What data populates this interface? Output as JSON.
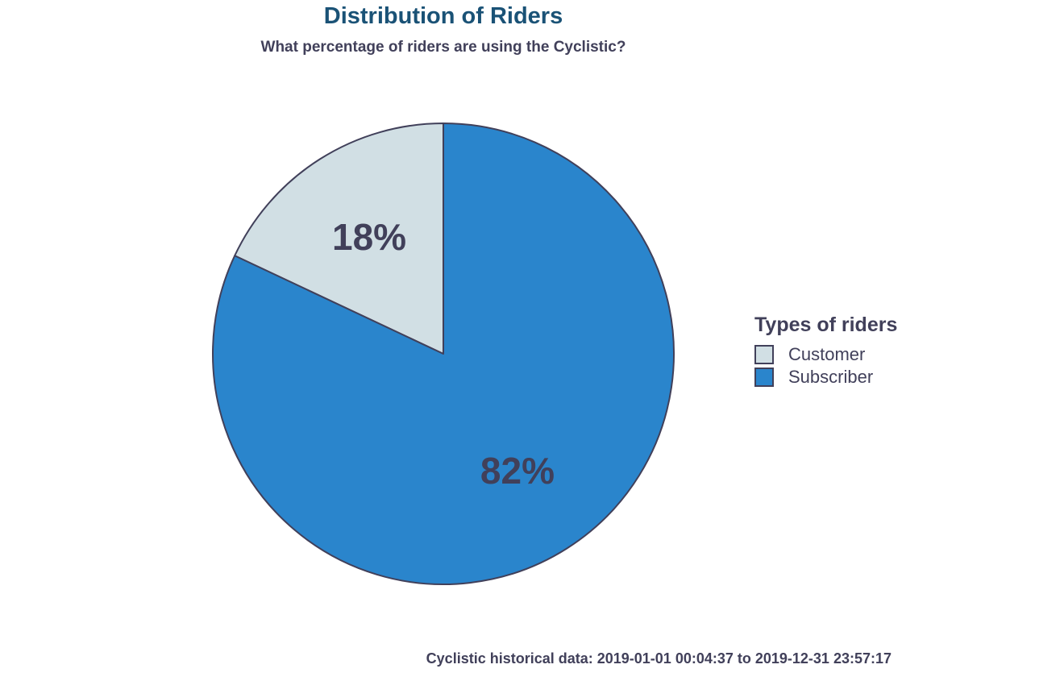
{
  "chart_data": {
    "type": "pie",
    "title": "Distribution of Riders",
    "subtitle": "What percentage of riders are using the Cyclistic?",
    "categories": [
      "Customer",
      "Subscriber"
    ],
    "values": [
      18,
      82
    ],
    "labels": [
      "18%",
      "82%"
    ],
    "colors": [
      "#d1dfe4",
      "#2a85cc"
    ],
    "outline_color": "#41405a",
    "legend": {
      "title": "Types of riders",
      "placement": "right"
    },
    "caption": "Cyclistic historical data: 2019-01-01 00:04:37 to 2019-12-31 23:57:17"
  },
  "colors": {
    "title": "#1a5276",
    "text": "#41405a"
  }
}
